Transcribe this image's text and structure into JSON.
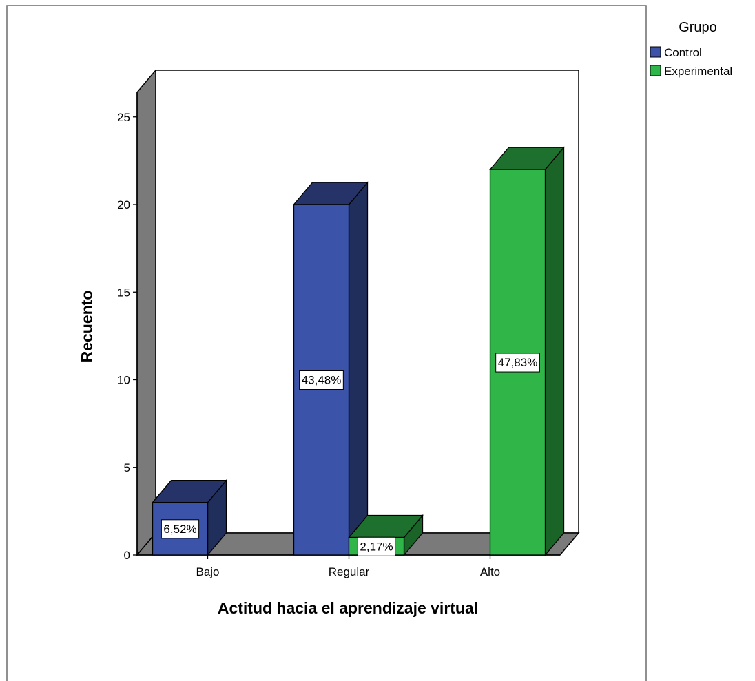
{
  "chart_data": {
    "type": "bar",
    "xlabel": "Actitud hacia el aprendizaje virtual",
    "ylabel": "Recuento",
    "categories": [
      "Bajo",
      "Regular",
      "Alto"
    ],
    "ylim": [
      0,
      27
    ],
    "yticks": [
      0,
      5,
      10,
      15,
      20,
      25
    ],
    "legend": {
      "title": "Grupo",
      "position": "top-right"
    },
    "grid": false,
    "three_d": true,
    "series": [
      {
        "name": "Control",
        "color": "#3b53a8",
        "values": [
          3,
          20,
          0
        ],
        "labels": [
          "6,52%",
          "43,48%",
          ""
        ]
      },
      {
        "name": "Experimental",
        "color": "#2fb548",
        "values": [
          0,
          1,
          22
        ],
        "labels": [
          "",
          "2,17%",
          "47,83%"
        ]
      }
    ]
  }
}
